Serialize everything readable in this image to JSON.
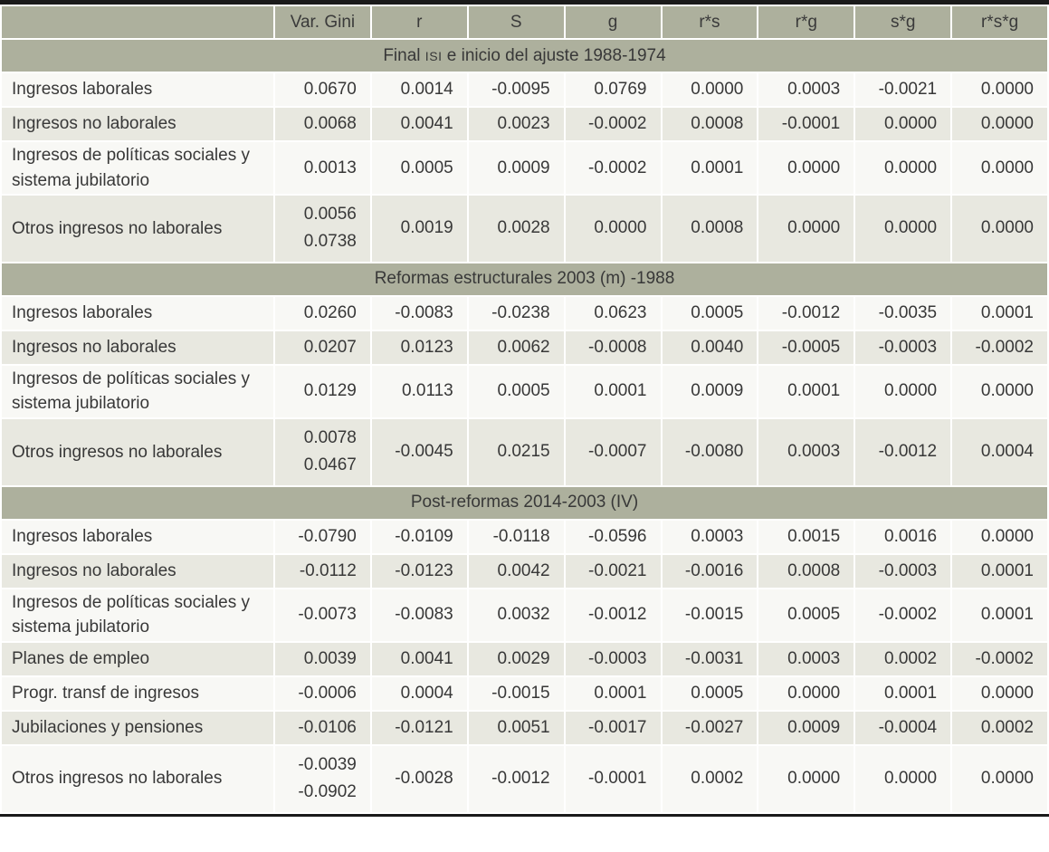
{
  "table": {
    "columns": [
      "",
      "Var. Gini",
      "r",
      "S",
      "g",
      "r*s",
      "r*g",
      "s*g",
      "r*s*g"
    ],
    "sections": [
      {
        "title_parts": [
          {
            "text": "Final ",
            "caps": false
          },
          {
            "text": "ISI",
            "caps": true
          },
          {
            "text": " e inicio del ajuste 1988-1974",
            "caps": false
          }
        ],
        "rows": [
          {
            "label": "Ingresos laborales",
            "values": [
              "0.0670",
              "0.0014",
              "-0.0095",
              "0.0769",
              "0.0000",
              "0.0003",
              "-0.0021",
              "0.0000"
            ]
          },
          {
            "label": "Ingresos no laborales",
            "values": [
              "0.0068",
              "0.0041",
              "0.0023",
              "-0.0002",
              "0.0008",
              "-0.0001",
              "0.0000",
              "0.0000"
            ]
          },
          {
            "label": "Ingresos de políticas sociales y sistema jubilatorio",
            "values": [
              "0.0013",
              "0.0005",
              "0.0009",
              "-0.0002",
              "0.0001",
              "0.0000",
              "0.0000",
              "0.0000"
            ]
          },
          {
            "label": "Otros ingresos no laborales",
            "values": [
              [
                "0.0056",
                "0.0738"
              ],
              "0.0019",
              "0.0028",
              "0.0000",
              "0.0008",
              "0.0000",
              "0.0000",
              "0.0000"
            ]
          }
        ]
      },
      {
        "title_parts": [
          {
            "text": "Reformas estructurales 2003 (m) -1988",
            "caps": false
          }
        ],
        "rows": [
          {
            "label": "Ingresos laborales",
            "values": [
              "0.0260",
              "-0.0083",
              "-0.0238",
              "0.0623",
              "0.0005",
              "-0.0012",
              "-0.0035",
              "0.0001"
            ]
          },
          {
            "label": "Ingresos no laborales",
            "values": [
              "0.0207",
              "0.0123",
              "0.0062",
              "-0.0008",
              "0.0040",
              "-0.0005",
              "-0.0003",
              "-0.0002"
            ]
          },
          {
            "label": "Ingresos de políticas sociales y sistema jubilatorio",
            "values": [
              "0.0129",
              "0.0113",
              "0.0005",
              "0.0001",
              "0.0009",
              "0.0001",
              "0.0000",
              "0.0000"
            ]
          },
          {
            "label": "Otros ingresos no laborales",
            "values": [
              [
                "0.0078",
                "0.0467"
              ],
              "-0.0045",
              "0.0215",
              "-0.0007",
              "-0.0080",
              "0.0003",
              "-0.0012",
              "0.0004"
            ]
          }
        ]
      },
      {
        "title_parts": [
          {
            "text": "Post-reformas 2014-2003 (IV)",
            "caps": false
          }
        ],
        "rows": [
          {
            "label": "Ingresos laborales",
            "values": [
              "-0.0790",
              "-0.0109",
              "-0.0118",
              "-0.0596",
              "0.0003",
              "0.0015",
              "0.0016",
              "0.0000"
            ]
          },
          {
            "label": "Ingresos no laborales",
            "values": [
              "-0.0112",
              "-0.0123",
              "0.0042",
              "-0.0021",
              "-0.0016",
              "0.0008",
              "-0.0003",
              "0.0001"
            ]
          },
          {
            "label": "Ingresos de políticas sociales y sistema jubilatorio",
            "values": [
              "-0.0073",
              "-0.0083",
              "0.0032",
              "-0.0012",
              "-0.0015",
              "0.0005",
              "-0.0002",
              "0.0001"
            ]
          },
          {
            "label": "Planes de empleo",
            "values": [
              "0.0039",
              "0.0041",
              "0.0029",
              "-0.0003",
              "-0.0031",
              "0.0003",
              "0.0002",
              "-0.0002"
            ]
          },
          {
            "label": "Progr. transf de ingresos",
            "values": [
              "-0.0006",
              "0.0004",
              "-0.0015",
              "0.0001",
              "0.0005",
              "0.0000",
              "0.0001",
              "0.0000"
            ]
          },
          {
            "label": "Jubilaciones y pensiones",
            "values": [
              "-0.0106",
              "-0.0121",
              "0.0051",
              "-0.0017",
              "-0.0027",
              "0.0009",
              "-0.0004",
              "0.0002"
            ]
          },
          {
            "label": "Otros ingresos no laborales",
            "values": [
              [
                "-0.0039",
                "-0.0902"
              ],
              "-0.0028",
              "-0.0012",
              "-0.0001",
              "0.0002",
              "0.0000",
              "0.0000",
              "0.0000"
            ]
          }
        ]
      }
    ]
  },
  "colors": {
    "band": "#adb09d",
    "row_light": "#f8f8f5",
    "row_shaded": "#e8e8e0",
    "rule": "#1a1a1a",
    "text": "#383838"
  }
}
